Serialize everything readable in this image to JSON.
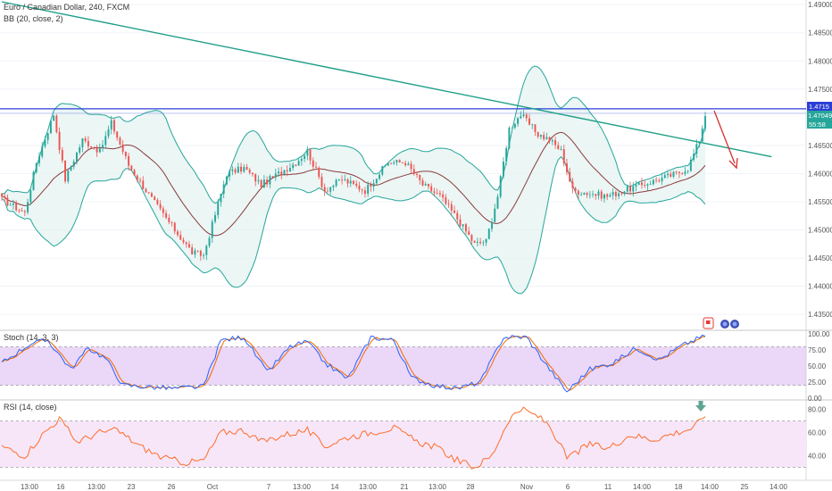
{
  "header": {
    "symbol_line": "Euro / Canadian Dollar, 240, FXCM",
    "indicator_line": "BB (20, close, 2)"
  },
  "price_axis": {
    "ticks": [
      "1.49000",
      "1.48500",
      "1.48000",
      "1.47500",
      "1.46500",
      "1.46000",
      "1.45500",
      "1.45000",
      "1.44500",
      "1.44000",
      "1.43500"
    ],
    "price_badge": "1.47049",
    "countdown_badge": "55:58",
    "resistance_badge": "1.4715"
  },
  "stoch_pane": {
    "title": "Stoch (14, 3, 3)",
    "ticks": [
      "100.00",
      "75.00",
      "50.00",
      "25.00",
      "0.00"
    ]
  },
  "rsi_pane": {
    "title": "RSI (14, close)",
    "ticks": [
      "80.00",
      "60.00",
      "40.00"
    ]
  },
  "time_axis": {
    "labels": [
      "13:00",
      "16",
      "13:00",
      "23",
      "26",
      "Oct",
      "7",
      "13:00",
      "14",
      "13:00",
      "21",
      "13:00",
      "28",
      "Nov",
      "6",
      "11",
      "14:00",
      "18",
      "14:00",
      "25",
      "14:00"
    ]
  },
  "icons": [
    "flag-icon",
    "dots-icon",
    "dots-icon",
    "arrow-down-icon"
  ],
  "colors": {
    "up": "#26a69a",
    "down": "#ef5350",
    "bb_band": "#26a69a",
    "bb_fill": "#e6f4f2",
    "bb_basis": "#8c3b3b",
    "trendline": "#1f9e87",
    "resistance": "#2b3fd6",
    "stoch_k": "#2962ff",
    "stoch_d": "#ef6c00",
    "stoch_fill": "#dbb6f0",
    "rsi": "#ff6d2a",
    "rsi_fill": "#f6e6f8",
    "forecast_arrow": "#d32f2f",
    "rsi_marker": "#5fa592"
  },
  "chart_data": [
    {
      "type": "candlestick",
      "title": "Euro / Canadian Dollar, 240, FXCM",
      "ylim": [
        1.4325,
        1.4905
      ],
      "close_key_points": [
        [
          0,
          1.4555
        ],
        [
          8,
          1.453
        ],
        [
          12,
          1.462
        ],
        [
          18,
          1.4705
        ],
        [
          22,
          1.459
        ],
        [
          28,
          1.466
        ],
        [
          34,
          1.464
        ],
        [
          38,
          1.469
        ],
        [
          44,
          1.4615
        ],
        [
          52,
          1.4555
        ],
        [
          60,
          1.45
        ],
        [
          66,
          1.446
        ],
        [
          70,
          1.4455
        ],
        [
          78,
          1.46
        ],
        [
          84,
          1.461
        ],
        [
          90,
          1.458
        ],
        [
          96,
          1.46
        ],
        [
          102,
          1.462
        ],
        [
          106,
          1.464
        ],
        [
          112,
          1.457
        ],
        [
          118,
          1.459
        ],
        [
          126,
          1.457
        ],
        [
          134,
          1.462
        ],
        [
          140,
          1.462
        ],
        [
          146,
          1.458
        ],
        [
          152,
          1.456
        ],
        [
          158,
          1.452
        ],
        [
          164,
          1.4475
        ],
        [
          168,
          1.448
        ],
        [
          172,
          1.456
        ],
        [
          176,
          1.468
        ],
        [
          180,
          1.4705
        ],
        [
          186,
          1.467
        ],
        [
          190,
          1.466
        ],
        [
          194,
          1.464
        ],
        [
          198,
          1.457
        ],
        [
          204,
          1.4565
        ],
        [
          210,
          1.456
        ],
        [
          216,
          1.457
        ],
        [
          222,
          1.458
        ],
        [
          228,
          1.459
        ],
        [
          234,
          1.46
        ],
        [
          238,
          1.461
        ],
        [
          242,
          1.466
        ],
        [
          244,
          1.4705
        ]
      ],
      "resistance": 1.4715,
      "trendline": [
        [
          0,
          1.4905
        ],
        [
          267,
          1.463
        ]
      ],
      "bollinger": {
        "period": 20,
        "mult": 2
      },
      "forecast": "down"
    },
    {
      "type": "line",
      "title": "Stoch (14, 3, 3)",
      "ylim": [
        0,
        100
      ],
      "bands": [
        20,
        80
      ],
      "k_key_points": [
        [
          0,
          55
        ],
        [
          10,
          85
        ],
        [
          16,
          90
        ],
        [
          24,
          45
        ],
        [
          30,
          78
        ],
        [
          36,
          62
        ],
        [
          42,
          20
        ],
        [
          60,
          15
        ],
        [
          70,
          18
        ],
        [
          76,
          90
        ],
        [
          84,
          95
        ],
        [
          92,
          40
        ],
        [
          100,
          80
        ],
        [
          106,
          88
        ],
        [
          112,
          55
        ],
        [
          120,
          30
        ],
        [
          128,
          95
        ],
        [
          136,
          90
        ],
        [
          142,
          32
        ],
        [
          150,
          20
        ],
        [
          158,
          15
        ],
        [
          166,
          25
        ],
        [
          174,
          95
        ],
        [
          182,
          95
        ],
        [
          190,
          45
        ],
        [
          196,
          10
        ],
        [
          204,
          45
        ],
        [
          212,
          55
        ],
        [
          220,
          78
        ],
        [
          228,
          60
        ],
        [
          236,
          82
        ],
        [
          244,
          98
        ]
      ]
    },
    {
      "type": "line",
      "title": "RSI (14, close)",
      "ylim": [
        25,
        85
      ],
      "bands": [
        30,
        70
      ],
      "rsi_key_points": [
        [
          0,
          48
        ],
        [
          8,
          40
        ],
        [
          14,
          58
        ],
        [
          20,
          72
        ],
        [
          26,
          52
        ],
        [
          34,
          60
        ],
        [
          40,
          62
        ],
        [
          48,
          48
        ],
        [
          56,
          38
        ],
        [
          64,
          34
        ],
        [
          70,
          36
        ],
        [
          76,
          60
        ],
        [
          84,
          62
        ],
        [
          90,
          52
        ],
        [
          98,
          58
        ],
        [
          106,
          62
        ],
        [
          112,
          48
        ],
        [
          120,
          56
        ],
        [
          128,
          60
        ],
        [
          136,
          64
        ],
        [
          144,
          52
        ],
        [
          150,
          48
        ],
        [
          158,
          36
        ],
        [
          164,
          30
        ],
        [
          170,
          40
        ],
        [
          176,
          72
        ],
        [
          180,
          80
        ],
        [
          186,
          74
        ],
        [
          190,
          66
        ],
        [
          196,
          38
        ],
        [
          204,
          50
        ],
        [
          210,
          46
        ],
        [
          218,
          58
        ],
        [
          226,
          54
        ],
        [
          234,
          60
        ],
        [
          240,
          64
        ],
        [
          244,
          76
        ]
      ]
    }
  ]
}
